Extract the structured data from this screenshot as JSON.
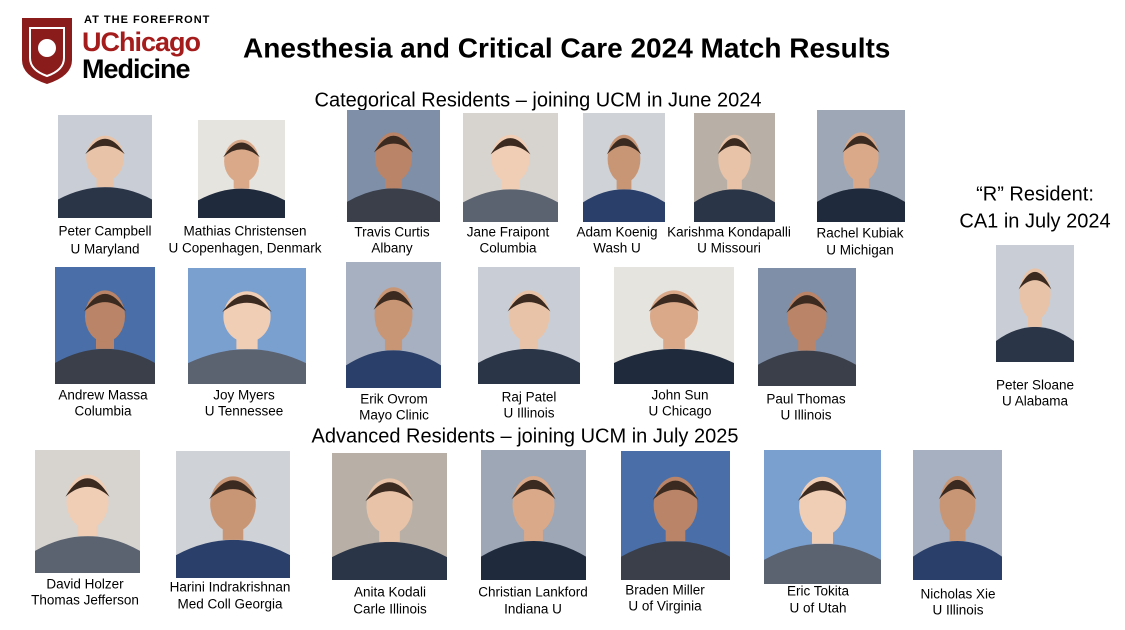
{
  "logo": {
    "tagline": "AT THE FOREFRONT",
    "line1": "UChicago",
    "line2": "Medicine"
  },
  "title": "Anesthesia and Critical Care 2024 Match Results",
  "sections": [
    {
      "heading": "Categorical Residents – joining UCM in June 2024",
      "people": [
        {
          "name": "Peter Campbell",
          "school": "U Maryland"
        },
        {
          "name": "Mathias Christensen",
          "school": "U Copenhagen, Denmark"
        },
        {
          "name": "Travis Curtis",
          "school": "Albany"
        },
        {
          "name": "Jane Fraipont",
          "school": "Columbia"
        },
        {
          "name": "Adam Koenig",
          "school": "Wash U"
        },
        {
          "name": "Karishma Kondapalli",
          "school": "U Missouri"
        },
        {
          "name": "Rachel Kubiak",
          "school": "U Michigan"
        },
        {
          "name": "Andrew Massa",
          "school": "Columbia"
        },
        {
          "name": "Joy Myers",
          "school": "U Tennessee"
        },
        {
          "name": "Erik Ovrom",
          "school": "Mayo Clinic"
        },
        {
          "name": "Raj Patel",
          "school": "U Illinois"
        },
        {
          "name": "John Sun",
          "school": "U Chicago"
        },
        {
          "name": "Paul Thomas",
          "school": "U Illinois"
        }
      ]
    },
    {
      "heading": "Advanced Residents – joining UCM in July 2025",
      "people": [
        {
          "name": "David Holzer",
          "school": "Thomas Jefferson"
        },
        {
          "name": "Harini Indrakrishnan",
          "school": "Med Coll Georgia"
        },
        {
          "name": "Anita Kodali",
          "school": "Carle Illinois"
        },
        {
          "name": "Christian Lankford",
          "school": "Indiana U"
        },
        {
          "name": "Braden Miller",
          "school": "U of Virginia"
        },
        {
          "name": "Eric Tokita",
          "school": "U of Utah"
        },
        {
          "name": "Nicholas Xie",
          "school": "U Illinois"
        }
      ]
    },
    {
      "heading_lines": [
        "“R” Resident:",
        "CA1 in July 2024"
      ],
      "people": [
        {
          "name": "Peter Sloane",
          "school": "U Alabama"
        }
      ]
    }
  ]
}
